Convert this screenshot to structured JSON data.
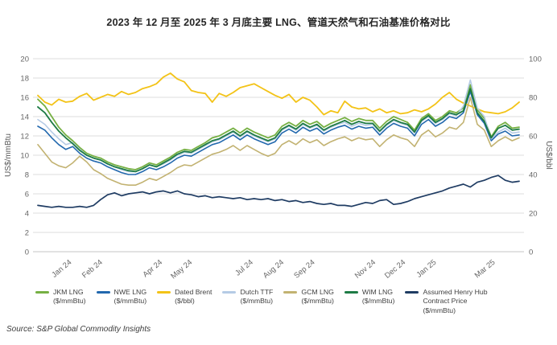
{
  "title": "2023 年 12 月至 2025 年 3 月底主要 LNG、管道天然气和石油基准价格对比",
  "source": "Source: S&P Global Commodity Insights",
  "chart_data": {
    "type": "line",
    "title": "2023 年 12 月至 2025 年 3 月底主要 LNG、管道天然气和石油基准价格对比",
    "grid": true,
    "legend_position": "bottom",
    "left_axis": {
      "label": "US$/mmBtu",
      "min": 0,
      "max": 20,
      "tick_step": 2
    },
    "right_axis": {
      "label": "US$/bbl",
      "min": 0,
      "max": 100,
      "tick_step": 20
    },
    "x_ticks": [
      {
        "label": "Jan 24",
        "pos": 0.0642
      },
      {
        "label": "Feb 24",
        "pos": 0.1284
      },
      {
        "label": "Apr 24",
        "pos": 0.2526
      },
      {
        "label": "May 24",
        "pos": 0.3147
      },
      {
        "label": "Jul 24",
        "pos": 0.4411
      },
      {
        "label": "Aug 24",
        "pos": 0.5052
      },
      {
        "label": "Sep 24",
        "pos": 0.5694
      },
      {
        "label": "Nov 24",
        "pos": 0.6957
      },
      {
        "label": "Dec 24",
        "pos": 0.7578
      },
      {
        "label": "Jan 25",
        "pos": 0.8219
      },
      {
        "label": "Mar 25",
        "pos": 0.9441
      }
    ],
    "series": [
      {
        "name": "JKM LNG",
        "unit": "($/mmBtu)",
        "axis": "left",
        "color": "#76b043",
        "width": 1.8,
        "values": [
          15.8,
          15.1,
          14.0,
          12.9,
          12.1,
          11.5,
          10.8,
          10.2,
          9.9,
          9.7,
          9.3,
          9.0,
          8.8,
          8.6,
          8.5,
          8.8,
          9.2,
          9.0,
          9.4,
          9.8,
          10.3,
          10.6,
          10.5,
          10.9,
          11.3,
          11.8,
          12.0,
          12.4,
          12.8,
          12.3,
          12.8,
          12.4,
          12.1,
          11.8,
          12.1,
          13.0,
          13.4,
          13.0,
          13.6,
          13.2,
          13.5,
          12.9,
          13.3,
          13.6,
          13.9,
          13.5,
          13.8,
          13.6,
          13.6,
          12.8,
          13.5,
          14.0,
          13.7,
          13.4,
          12.6,
          13.8,
          14.3,
          13.6,
          14.0,
          14.6,
          14.4,
          14.9,
          17.3,
          14.7,
          13.8,
          11.9,
          13.0,
          13.4,
          12.8,
          12.9
        ]
      },
      {
        "name": "NWE LNG",
        "unit": "($/mmBtu)",
        "axis": "left",
        "color": "#2268ae",
        "width": 1.6,
        "values": [
          13.0,
          12.6,
          11.8,
          11.1,
          10.6,
          10.9,
          10.2,
          9.7,
          9.4,
          9.2,
          8.8,
          8.5,
          8.2,
          8.0,
          8.0,
          8.3,
          8.7,
          8.5,
          8.8,
          9.2,
          9.7,
          10.0,
          9.9,
          10.3,
          10.7,
          11.1,
          11.3,
          11.7,
          12.1,
          11.6,
          12.1,
          11.7,
          11.4,
          11.1,
          11.4,
          12.3,
          12.7,
          12.3,
          12.9,
          12.5,
          12.8,
          12.2,
          12.6,
          12.9,
          13.1,
          12.7,
          13.0,
          12.8,
          12.9,
          12.1,
          12.8,
          13.3,
          13.0,
          12.8,
          12.0,
          13.2,
          13.7,
          13.0,
          13.4,
          14.0,
          13.8,
          14.4,
          16.6,
          14.2,
          13.3,
          11.5,
          12.2,
          12.5,
          12.0,
          12.1
        ]
      },
      {
        "name": "Dated Brent",
        "unit": "($/bbl)",
        "axis": "right",
        "color": "#f3c317",
        "width": 1.8,
        "values": [
          81,
          77.5,
          76,
          79,
          77.5,
          78,
          80.5,
          82,
          78.5,
          80,
          81.5,
          80.5,
          83,
          81.5,
          82.5,
          84.5,
          85.5,
          87,
          90.5,
          92.5,
          89.5,
          88,
          83.5,
          82.5,
          82,
          77.5,
          82,
          80.5,
          82.5,
          85,
          86,
          87,
          85,
          83,
          81,
          79.5,
          81.5,
          77.5,
          80,
          78.5,
          75,
          71,
          73,
          72,
          78,
          75,
          74,
          74.5,
          72.5,
          74,
          72,
          73,
          71.5,
          72,
          73.5,
          72.5,
          74,
          76.5,
          80,
          82.5,
          79,
          77,
          75.5,
          74,
          72.5,
          72,
          71.5,
          72.5,
          74.5,
          77.5
        ]
      },
      {
        "name": "Dutch TTF",
        "unit": "($/mmBtu)",
        "axis": "left",
        "color": "#b5cbe5",
        "width": 1.6,
        "values": [
          13.7,
          13.2,
          12.4,
          11.7,
          11.1,
          11.3,
          10.6,
          10.0,
          9.7,
          9.5,
          9.1,
          8.8,
          8.5,
          8.3,
          8.3,
          8.6,
          9.0,
          8.8,
          9.1,
          9.5,
          10.0,
          10.3,
          10.2,
          10.6,
          11.0,
          11.4,
          11.6,
          12.0,
          12.4,
          11.9,
          12.4,
          12.0,
          11.7,
          11.4,
          11.7,
          12.6,
          13.0,
          12.6,
          13.2,
          12.8,
          13.1,
          12.5,
          12.9,
          13.2,
          13.4,
          13.0,
          13.3,
          13.1,
          13.2,
          12.4,
          13.1,
          13.6,
          13.3,
          13.1,
          12.3,
          13.5,
          14.0,
          13.3,
          13.7,
          14.3,
          14.1,
          15.1,
          17.8,
          14.9,
          14.0,
          11.7,
          12.4,
          12.8,
          12.3,
          12.4
        ]
      },
      {
        "name": "GCM LNG",
        "unit": "($/mmBtu)",
        "axis": "left",
        "color": "#c2b271",
        "width": 1.6,
        "values": [
          11.1,
          10.2,
          9.3,
          8.9,
          8.7,
          9.2,
          9.9,
          9.3,
          8.5,
          8.1,
          7.6,
          7.3,
          7.0,
          6.9,
          6.9,
          7.2,
          7.6,
          7.4,
          7.8,
          8.2,
          8.7,
          9.0,
          8.9,
          9.3,
          9.7,
          10.1,
          10.3,
          10.6,
          11.0,
          10.5,
          11.0,
          10.6,
          10.2,
          9.9,
          10.2,
          11.1,
          11.5,
          11.1,
          11.7,
          11.3,
          11.6,
          11.0,
          11.4,
          11.7,
          11.9,
          11.5,
          11.8,
          11.6,
          11.7,
          10.9,
          11.6,
          12.1,
          11.8,
          11.6,
          10.9,
          12.1,
          12.6,
          11.9,
          12.3,
          12.9,
          12.7,
          13.4,
          16.0,
          13.2,
          12.6,
          10.9,
          11.5,
          11.9,
          11.5,
          11.8
        ]
      },
      {
        "name": "WIM LNG",
        "unit": "($/mmBtu)",
        "axis": "left",
        "color": "#1e7b45",
        "width": 1.8,
        "values": [
          15.0,
          14.4,
          13.4,
          12.5,
          11.8,
          11.2,
          10.5,
          10.0,
          9.7,
          9.5,
          9.1,
          8.8,
          8.6,
          8.4,
          8.3,
          8.6,
          9.0,
          8.8,
          9.2,
          9.6,
          10.1,
          10.4,
          10.3,
          10.7,
          11.1,
          11.5,
          11.7,
          12.1,
          12.5,
          12.0,
          12.5,
          12.1,
          11.8,
          11.5,
          11.8,
          12.7,
          13.1,
          12.7,
          13.3,
          12.9,
          13.2,
          12.6,
          13.0,
          13.3,
          13.6,
          13.2,
          13.5,
          13.3,
          13.3,
          12.5,
          13.2,
          13.7,
          13.4,
          13.2,
          12.4,
          13.6,
          14.1,
          13.4,
          13.8,
          14.4,
          14.2,
          14.6,
          16.9,
          14.4,
          13.5,
          11.8,
          12.8,
          13.1,
          12.6,
          12.7
        ]
      },
      {
        "name": "Assumed Henry Hub Contract Price",
        "unit": "($/mmBtu)",
        "axis": "left",
        "color": "#1f3c63",
        "width": 1.7,
        "values": [
          4.8,
          4.7,
          4.6,
          4.7,
          4.6,
          4.6,
          4.7,
          4.6,
          4.8,
          5.4,
          5.9,
          6.1,
          5.8,
          6.0,
          6.1,
          6.2,
          6.0,
          6.2,
          6.3,
          6.1,
          6.3,
          6.0,
          5.9,
          5.7,
          5.8,
          5.6,
          5.7,
          5.6,
          5.5,
          5.6,
          5.4,
          5.5,
          5.4,
          5.5,
          5.3,
          5.4,
          5.2,
          5.3,
          5.1,
          5.2,
          5.0,
          4.9,
          5.0,
          4.8,
          4.8,
          4.7,
          4.9,
          5.1,
          5.0,
          5.3,
          5.4,
          4.9,
          5.0,
          5.2,
          5.5,
          5.7,
          5.9,
          6.1,
          6.3,
          6.6,
          6.8,
          7.0,
          6.7,
          7.2,
          7.4,
          7.7,
          7.9,
          7.4,
          7.2,
          7.3
        ]
      }
    ],
    "style": {
      "gridline_color": "#dcdcdc",
      "zero_line_color": "#c4c4c4",
      "axis_text_color": "#666666",
      "axis_title_color": "#595959"
    }
  }
}
